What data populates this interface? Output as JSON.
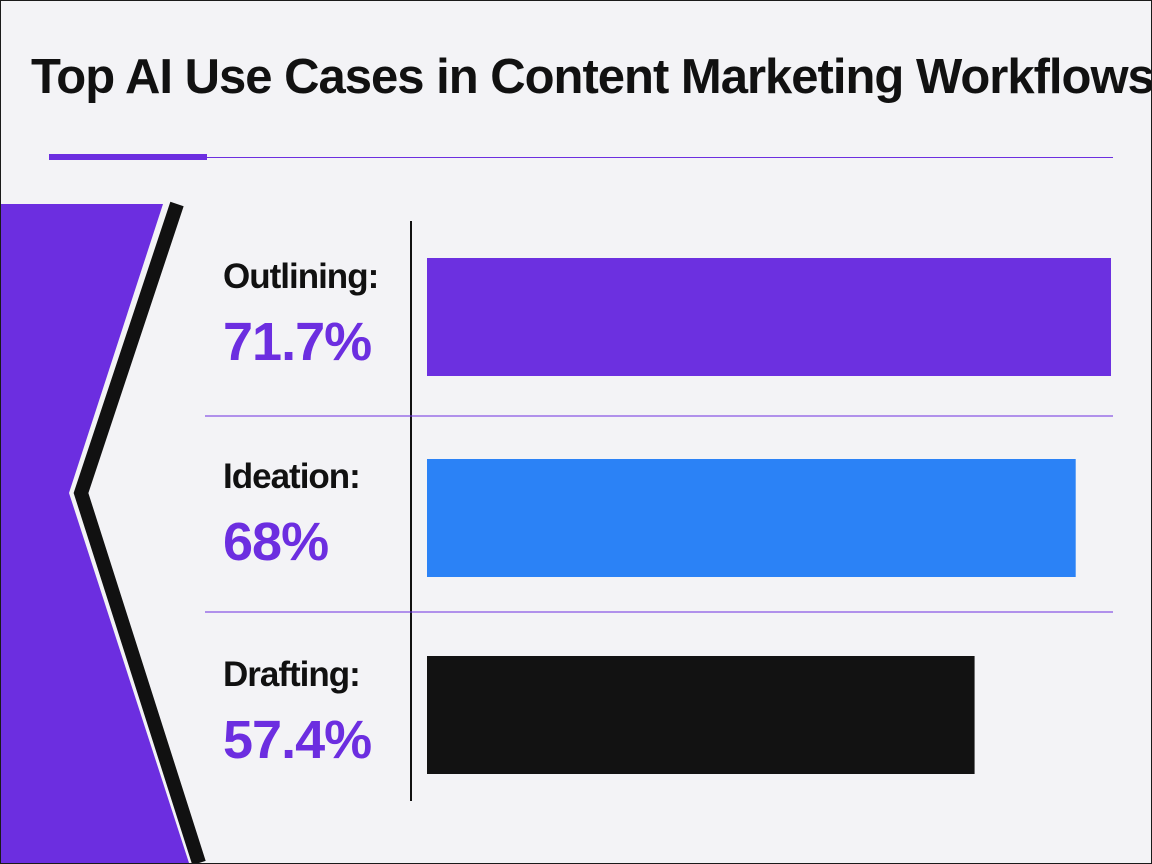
{
  "title": "Top AI Use Cases in Content Marketing Workflows",
  "colors": {
    "accent": "#6c2ee0",
    "text": "#111111",
    "background": "#f3f3f6"
  },
  "chart_data": {
    "type": "bar",
    "orientation": "horizontal",
    "title": "Top AI Use Cases in Content Marketing Workflows",
    "categories": [
      "Outlining:",
      "Ideation:",
      "Drafting:"
    ],
    "value_labels": [
      "71.7%",
      "68%",
      "57.4%"
    ],
    "values": [
      71.7,
      68,
      57.4
    ],
    "bar_colors": [
      "#6c30e0",
      "#2b82f6",
      "#121212"
    ],
    "xlim": [
      0,
      71.7
    ],
    "grid": false,
    "legend": "none"
  }
}
